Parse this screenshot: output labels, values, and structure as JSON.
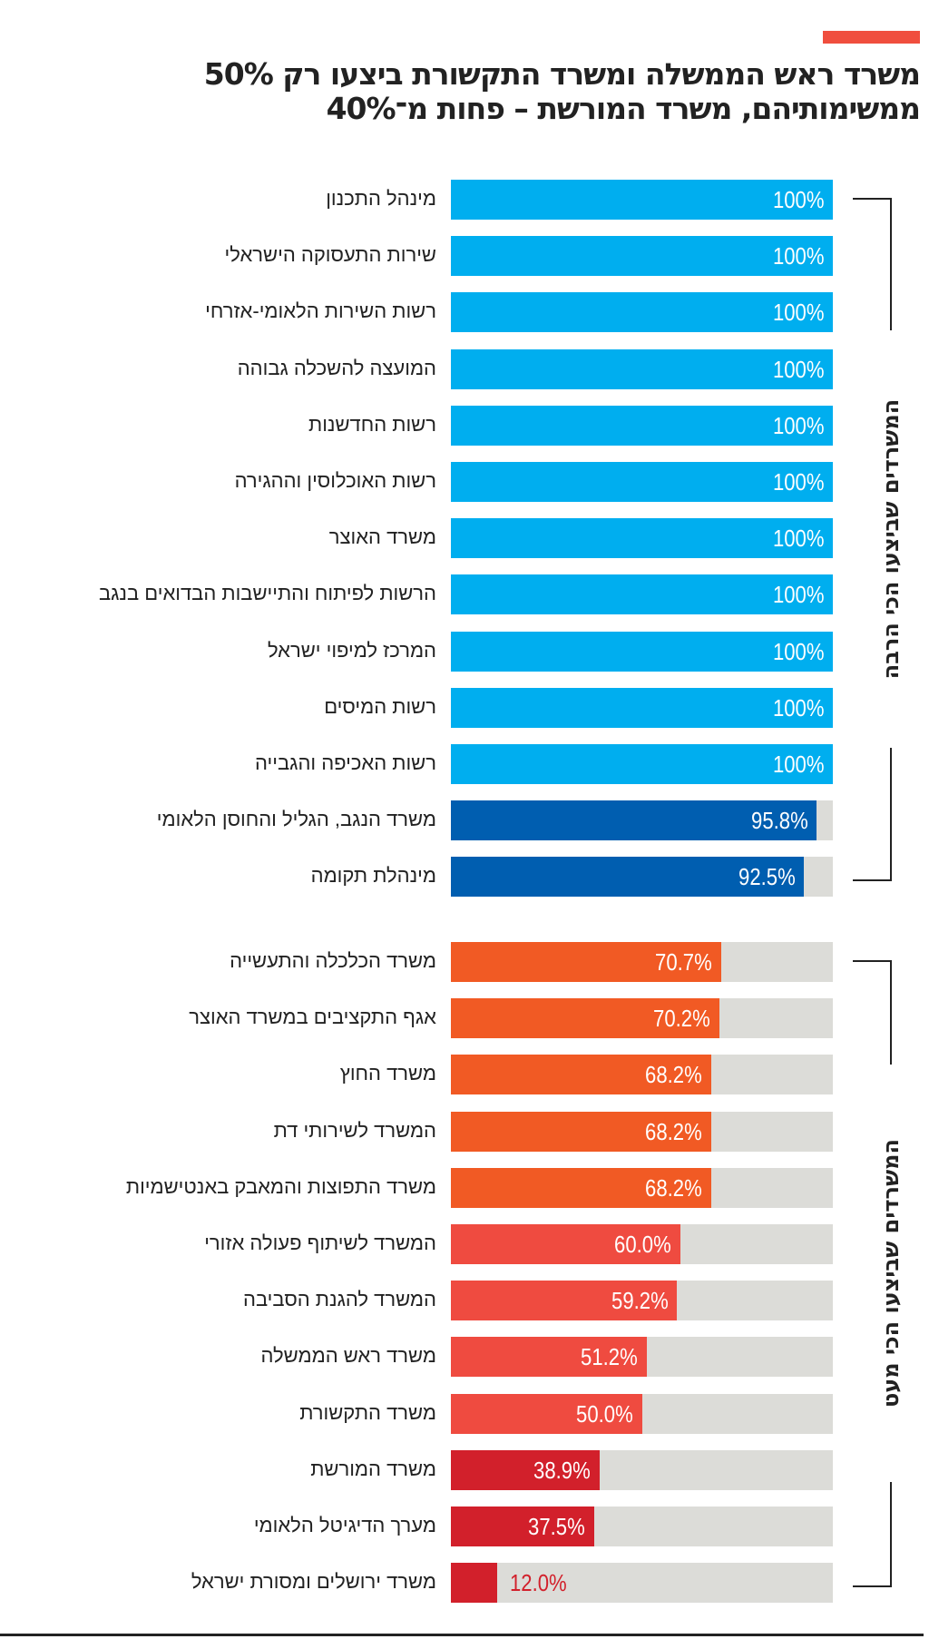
{
  "title": {
    "line1": "משרד ראש הממשלה ומשרד התקשורת ביצעו רק 50%",
    "line2": "ממשימותיהם, משרד המורשת – פחות מ־40%"
  },
  "colors": {
    "light_blue": "#00aeef",
    "dark_blue": "#005eb0",
    "orange": "#f15a24",
    "coral": "#ef4b40",
    "red": "#d2202b",
    "track": "#dcdcd8",
    "accent": "#f04e3e"
  },
  "chart_data": {
    "type": "bar",
    "orientation": "horizontal",
    "title": "משרד ראש הממשלה ומשרד התקשורת ביצעו רק 50% ממשימותיהם, משרד המורשת – פחות מ־40%",
    "xlim": [
      0,
      100
    ],
    "unit": "%",
    "groups": [
      {
        "name": "המשרדים שביצעו הכי הרבה",
        "start": 0,
        "end": 12
      },
      {
        "name": "המשרדים שביצעו הכי מעט",
        "start": 13,
        "end": 24
      }
    ],
    "categories": [
      "מינהל התכנון",
      "שירות התעסוקה הישראלי",
      "רשות השירות הלאומי-אזרחי",
      "המועצה להשכלה גבוהה",
      "רשות החדשנות",
      "רשות האוכלוסין וההגירה",
      "משרד האוצר",
      "הרשות לפיתוח והתיישבות הבדואים בנגב",
      "המרכז למיפוי ישראל",
      "רשות המיסים",
      "רשות האכיפה והגבייה",
      "משרד הנגב, הגליל והחוסן הלאומי",
      "מינהלת תקומה",
      "משרד הכלכלה והתעשייה",
      "אגף התקציבים במשרד האוצר",
      "משרד החוץ",
      "המשרד לשירותי דת",
      "משרד התפוצות והמאבק באנטישמיות",
      "המשרד לשיתוף פעולה אזורי",
      "המשרד להגנת הסביבה",
      "משרד ראש הממשלה",
      "משרד התקשורת",
      "משרד המורשת",
      "מערך הדיגיטל הלאומי",
      "משרד ירושלים ומסורת ישראל"
    ],
    "values": [
      100,
      100,
      100,
      100,
      100,
      100,
      100,
      100,
      100,
      100,
      100,
      95.8,
      92.5,
      70.7,
      70.2,
      68.2,
      68.2,
      68.2,
      60.0,
      59.2,
      51.2,
      50.0,
      38.9,
      37.5,
      12.0
    ],
    "labels": [
      "100%",
      "100%",
      "100%",
      "100%",
      "100%",
      "100%",
      "100%",
      "100%",
      "100%",
      "100%",
      "100%",
      "95.8%",
      "92.5%",
      "70.7%",
      "70.2%",
      "68.2%",
      "68.2%",
      "68.2%",
      "60.0%",
      "59.2%",
      "51.2%",
      "50.0%",
      "38.9%",
      "37.5%",
      "12.0%"
    ],
    "bar_colors": [
      "#00aeef",
      "#00aeef",
      "#00aeef",
      "#00aeef",
      "#00aeef",
      "#00aeef",
      "#00aeef",
      "#00aeef",
      "#00aeef",
      "#00aeef",
      "#00aeef",
      "#005eb0",
      "#005eb0",
      "#f15a24",
      "#f15a24",
      "#f15a24",
      "#f15a24",
      "#f15a24",
      "#ef4b40",
      "#ef4b40",
      "#ef4b40",
      "#ef4b40",
      "#d2202b",
      "#d2202b",
      "#d2202b"
    ]
  }
}
